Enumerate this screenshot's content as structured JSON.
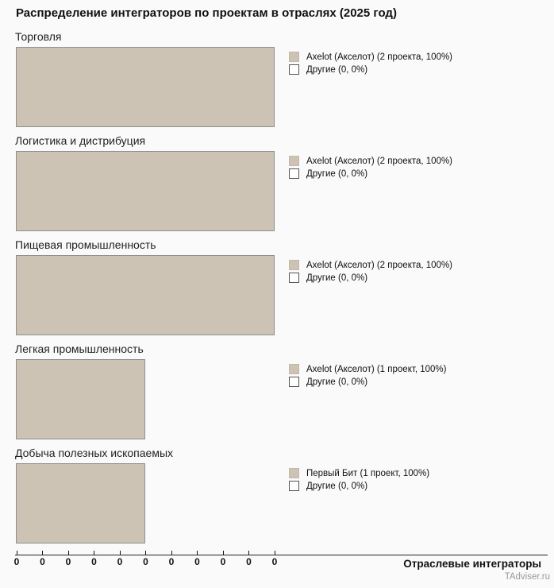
{
  "title": "Распределение интеграторов по проектам в отраслях (2025 год)",
  "colors": {
    "background": "#fafafa",
    "bar_fill": "#ccc3b5",
    "bar_border": "#8f8f8f",
    "empty_fill": "#ffffff",
    "empty_border": "#555555",
    "axis_line": "#222222",
    "watermark_text": "#9a9a9a"
  },
  "sections": [
    {
      "title": "Торговля",
      "bar_pct": 100,
      "legend": [
        {
          "label": "Axelot (Акселот) (2 проекта, 100%)",
          "swatch": "filled"
        },
        {
          "label": "Другие (0, 0%)",
          "swatch": "empty"
        }
      ]
    },
    {
      "title": "Логистика и дистрибуция",
      "bar_pct": 100,
      "legend": [
        {
          "label": "Axelot (Акселот) (2 проекта, 100%)",
          "swatch": "filled"
        },
        {
          "label": "Другие (0, 0%)",
          "swatch": "empty"
        }
      ]
    },
    {
      "title": "Пищевая промышленность",
      "bar_pct": 100,
      "legend": [
        {
          "label": "Axelot (Акселот) (2 проекта, 100%)",
          "swatch": "filled"
        },
        {
          "label": "Другие (0, 0%)",
          "swatch": "empty"
        }
      ]
    },
    {
      "title": "Легкая промышленность",
      "bar_pct": 50,
      "legend": [
        {
          "label": "Axelot (Акселот) (1 проект, 100%)",
          "swatch": "filled"
        },
        {
          "label": "Другие (0, 0%)",
          "swatch": "empty"
        }
      ]
    },
    {
      "title": "Добыча полезных ископаемых",
      "bar_pct": 50,
      "legend": [
        {
          "label": "Первый Бит (1 проект, 100%)",
          "swatch": "filled"
        },
        {
          "label": "Другие (0, 0%)",
          "swatch": "empty"
        }
      ]
    }
  ],
  "axis": {
    "ticks": [
      "0",
      "0",
      "0",
      "0",
      "0",
      "0",
      "0",
      "0",
      "0",
      "0",
      "0"
    ],
    "label": "Отраслевые интеграторы"
  },
  "watermark": "TAdviser.ru",
  "chart_data": {
    "type": "bar",
    "orientation": "horizontal",
    "title": "Распределение интеграторов по проектам в отраслях (2025 год)",
    "xlabel": "Отраслевые интеграторы",
    "xlim": [
      0,
      2
    ],
    "x_tick_labels": [
      "0",
      "0",
      "0",
      "0",
      "0",
      "0",
      "0",
      "0",
      "0",
      "0",
      "0"
    ],
    "grid": false,
    "legend_position": "right-of-each-bar",
    "groups": [
      {
        "industry": "Торговля",
        "bars": [
          {
            "name": "Axelot (Акселот)",
            "projects": 2,
            "percent": 100
          },
          {
            "name": "Другие",
            "projects": 0,
            "percent": 0
          }
        ]
      },
      {
        "industry": "Логистика и дистрибуция",
        "bars": [
          {
            "name": "Axelot (Акселот)",
            "projects": 2,
            "percent": 100
          },
          {
            "name": "Другие",
            "projects": 0,
            "percent": 0
          }
        ]
      },
      {
        "industry": "Пищевая промышленность",
        "bars": [
          {
            "name": "Axelot (Акселот)",
            "projects": 2,
            "percent": 100
          },
          {
            "name": "Другие",
            "projects": 0,
            "percent": 0
          }
        ]
      },
      {
        "industry": "Легкая промышленность",
        "bars": [
          {
            "name": "Axelot (Акселот)",
            "projects": 1,
            "percent": 100
          },
          {
            "name": "Другие",
            "projects": 0,
            "percent": 0
          }
        ]
      },
      {
        "industry": "Добыча полезных ископаемых",
        "bars": [
          {
            "name": "Первый Бит",
            "projects": 1,
            "percent": 100
          },
          {
            "name": "Другие",
            "projects": 0,
            "percent": 0
          }
        ]
      }
    ],
    "source": "TAdviser.ru"
  }
}
